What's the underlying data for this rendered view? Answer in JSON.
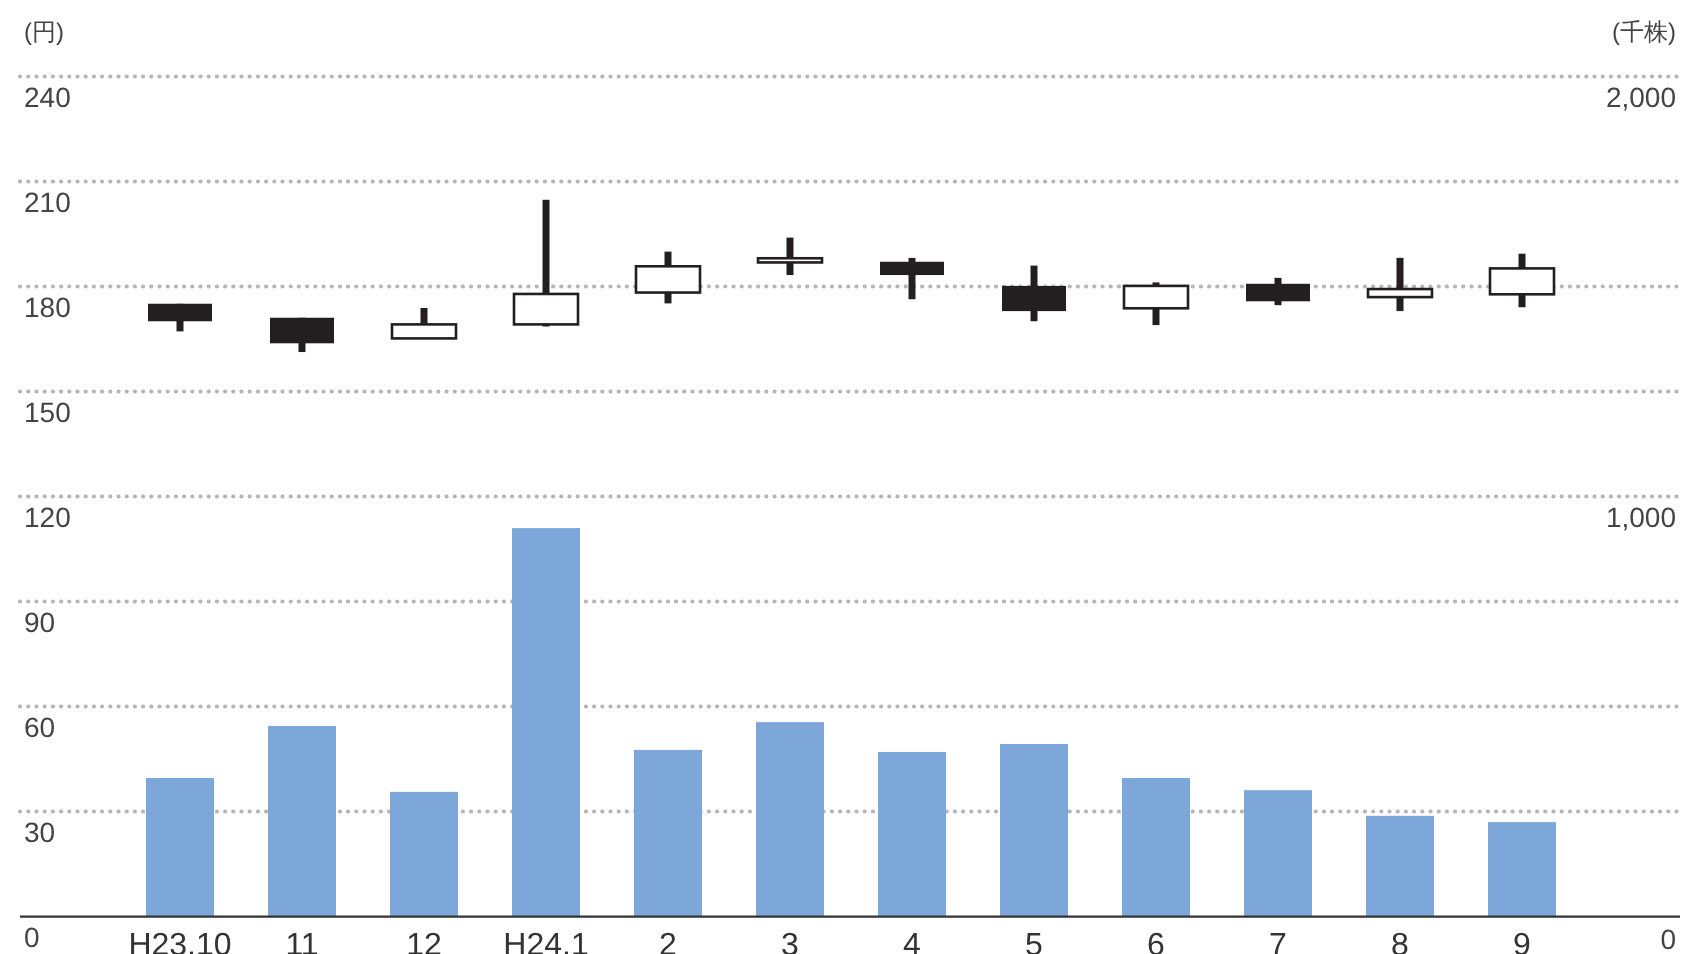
{
  "chart_data": {
    "type": "candlestick",
    "ylabel": "(円)",
    "y2label": "(千株)",
    "categories": [
      "H23.10",
      "11",
      "12",
      "H24.1",
      "2",
      "3",
      "4",
      "5",
      "6",
      "7",
      "8",
      "9"
    ],
    "ylim": [
      0,
      240
    ],
    "yticks": [
      0,
      30,
      60,
      90,
      120,
      150,
      180,
      210,
      240
    ],
    "y2lim": [
      0,
      2000
    ],
    "y2ticks": [
      0,
      {
        "value": 1000,
        "label": "1,000"
      },
      {
        "value": 2000,
        "label": "2,000"
      }
    ],
    "grid": "y",
    "series": [
      {
        "type": "bar",
        "axis": "y2",
        "color": "#7da7d9",
        "values": [
          330,
          454,
          297,
          925,
          397,
          463,
          392,
          411,
          330,
          301,
          240,
          225
        ]
      },
      {
        "color": "#231f20",
        "ohlc": [
          [
            175.1,
            175.1,
            167.2,
            170.1
          ],
          [
            171.1,
            171.1,
            161.3,
            163.8
          ],
          [
            165.2,
            173.9,
            165.2,
            169.2
          ],
          [
            169.2,
            204.8,
            168.6,
            177.9
          ],
          [
            178.3,
            190.0,
            175.2,
            185.8
          ],
          [
            186.9,
            194.0,
            183.3,
            188.1
          ],
          [
            187.1,
            188.2,
            176.4,
            183.3
          ],
          [
            180.2,
            186.0,
            170.1,
            173.0
          ],
          [
            173.8,
            181.2,
            169.0,
            180.2
          ],
          [
            180.8,
            182.5,
            174.7,
            175.8
          ],
          [
            177.0,
            188.2,
            173.0,
            179.3
          ],
          [
            177.8,
            189.4,
            174.1,
            185.2
          ]
        ]
      }
    ]
  }
}
